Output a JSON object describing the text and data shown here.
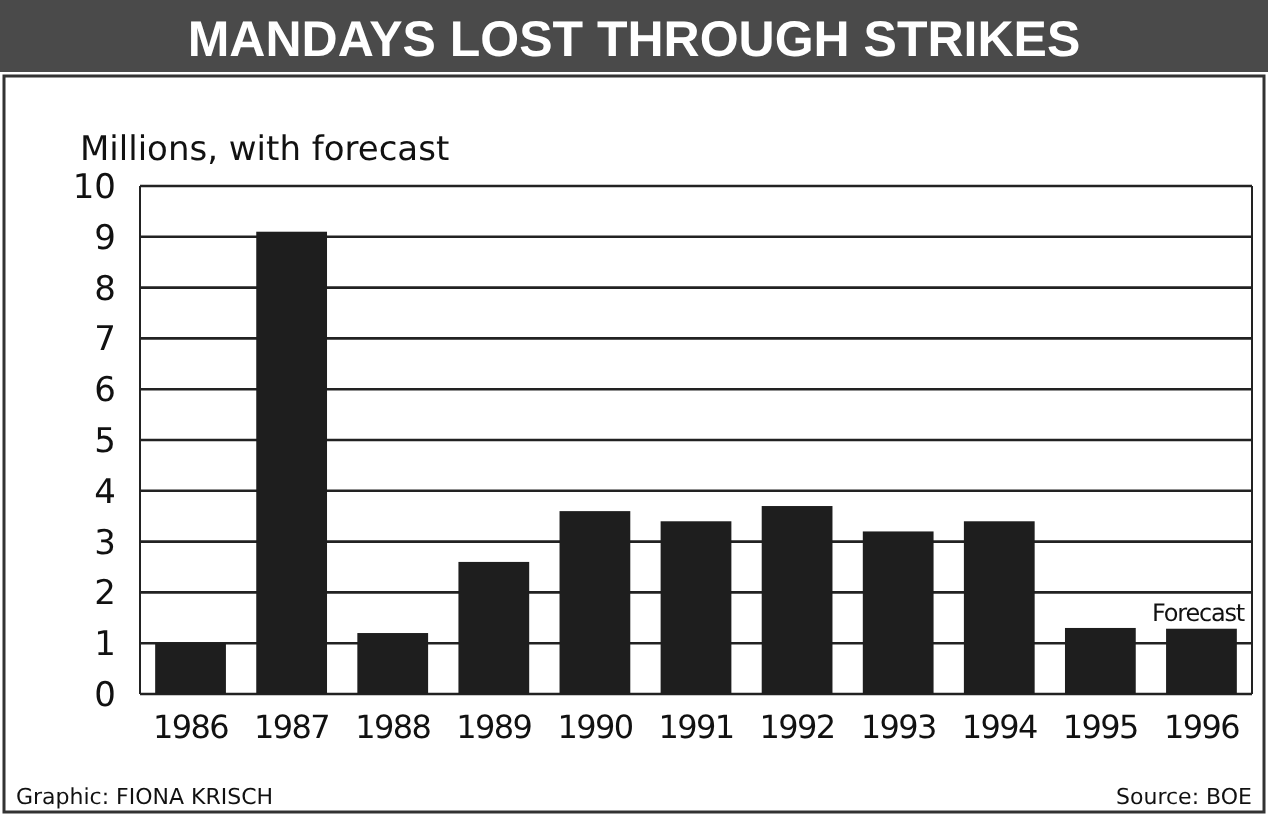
{
  "chart_data": {
    "type": "bar",
    "title": "MANDAYS LOST THROUGH STRIKES",
    "ylabel": "Millions, with forecast",
    "categories": [
      "1986",
      "1987",
      "1988",
      "1989",
      "1990",
      "1991",
      "1992",
      "1993",
      "1994",
      "1995",
      "1996"
    ],
    "values": [
      1.0,
      9.1,
      1.2,
      2.6,
      3.6,
      3.4,
      3.7,
      3.2,
      3.4,
      1.3,
      1.3
    ],
    "color": "#1e1e1e",
    "ylim": [
      0,
      10
    ],
    "yticks": [
      0,
      1,
      2,
      3,
      4,
      5,
      6,
      7,
      8,
      9,
      10
    ],
    "grid": "y",
    "annotations": [
      "Forecast",
      "Graphic: FIONA KRISCH",
      "Source: BOE"
    ]
  }
}
